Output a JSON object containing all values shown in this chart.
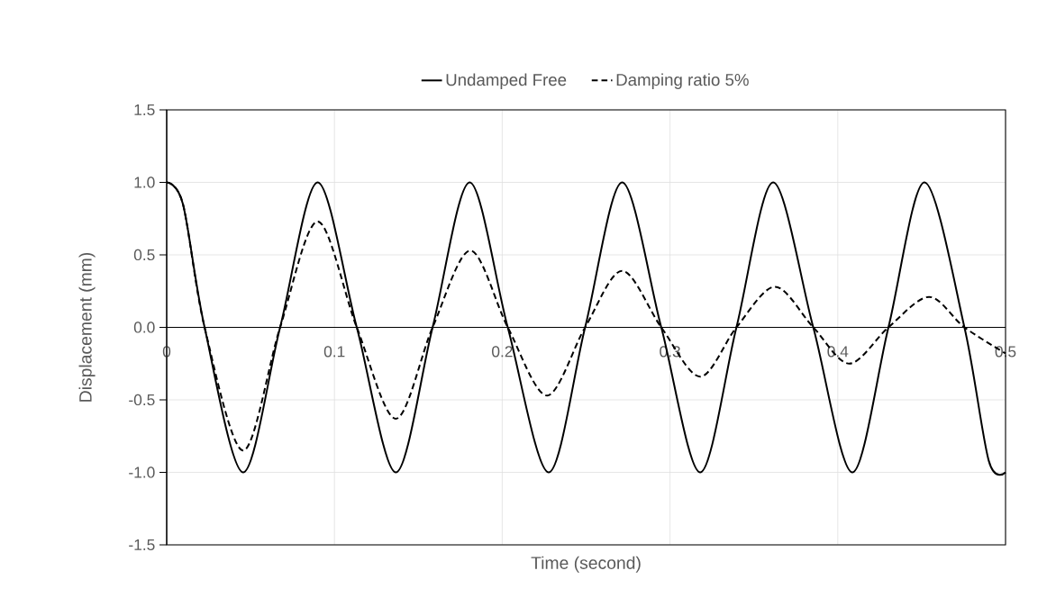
{
  "chart_data": {
    "type": "line",
    "xlabel": "Time (second)",
    "ylabel": "Displacement (mm)",
    "series": [
      {
        "name": "Undamped Free",
        "color": "#000000",
        "line_style": "solid",
        "x": [
          0,
          0.0097,
          0.0226,
          0.0456,
          0.0676,
          0.09,
          0.1133,
          0.1366,
          0.1585,
          0.1806,
          0.2033,
          0.2277,
          0.2494,
          0.2715,
          0.2948,
          0.318,
          0.3396,
          0.3615,
          0.3854,
          0.4087,
          0.4302,
          0.4517,
          0.4755,
          0.49,
          0.5
        ],
        "values": [
          1.0,
          0.85,
          0,
          -1.0,
          0,
          1.0,
          0,
          -1.0,
          0,
          1.0,
          0,
          -1.0,
          0,
          1.0,
          0,
          -1.0,
          0,
          1.0,
          0,
          -1.0,
          0,
          1.0,
          0,
          -0.92,
          -1.0
        ]
      },
      {
        "name": "Damping ratio 5%",
        "color": "#000000",
        "line_style": "dashed",
        "x": [
          0,
          0.0097,
          0.0226,
          0.0456,
          0.0676,
          0.09,
          0.1133,
          0.1366,
          0.1585,
          0.181,
          0.2033,
          0.2267,
          0.2494,
          0.2715,
          0.2948,
          0.318,
          0.3396,
          0.3626,
          0.3854,
          0.4069,
          0.4302,
          0.4544,
          0.4755,
          0.5
        ],
        "values": [
          1.0,
          0.85,
          0,
          -0.85,
          0,
          0.73,
          0,
          -0.63,
          0,
          0.53,
          0,
          -0.47,
          0,
          0.39,
          0,
          -0.34,
          0,
          0.28,
          0,
          -0.25,
          0,
          0.21,
          0,
          -0.18
        ]
      }
    ],
    "xlim": [
      0,
      0.5
    ],
    "ylim": [
      -1.5,
      1.5
    ],
    "xticks": [
      0,
      0.1,
      0.2,
      0.3,
      0.4,
      0.5
    ],
    "yticks": [
      -1.5,
      {
        "value": -1.0,
        "label": "-1.0"
      },
      -0.5,
      {
        "value": 0.0,
        "label": "0.0"
      },
      0.5,
      {
        "value": 1.0,
        "label": "1.0"
      },
      1.5
    ],
    "grid": true,
    "legend": "top"
  }
}
